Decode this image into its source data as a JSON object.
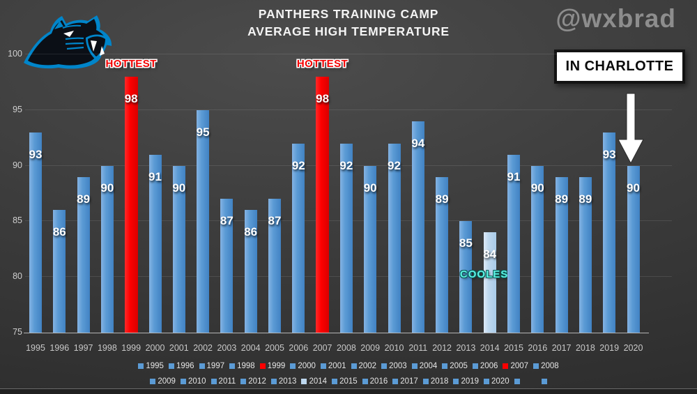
{
  "header": {
    "title_line1": "PANTHERS TRAINING CAMP",
    "title_line2": "AVERAGE HIGH TEMPERATURE",
    "watermark": "@wxbrad"
  },
  "annotations": {
    "hottest_label": "HOTTEST",
    "coolest_label": "COOLEST",
    "callout": "IN CHARLOTTE"
  },
  "icons": {
    "logo": "panthers-logo",
    "arrow": "down-arrow-icon"
  },
  "colors": {
    "bar_blue": "#5B9BD5",
    "bar_red": "#FE0000",
    "bar_pale": "#BDD7EE",
    "hottest_text": "#F40000",
    "coolest_text": "#5DF2E4",
    "logo_blue": "#0085CA",
    "background": "#3E3E3E",
    "title_text": "#F4F4F4",
    "watermark_text": "#8D8D8D"
  },
  "chart_data": {
    "type": "bar",
    "title": "Panthers Training Camp Average High Temperature",
    "subtitle": "In Charlotte",
    "xlabel": "",
    "ylabel": "",
    "ylim": [
      75,
      100
    ],
    "yticks": [
      75,
      80,
      85,
      90,
      95,
      100
    ],
    "grid": true,
    "legend_position": "bottom",
    "categories": [
      "1995",
      "1996",
      "1997",
      "1998",
      "1999",
      "2000",
      "2001",
      "2002",
      "2003",
      "2004",
      "2005",
      "2006",
      "2007",
      "2008",
      "2009",
      "2010",
      "2011",
      "2012",
      "2013",
      "2014",
      "2015",
      "2016",
      "2017",
      "2018",
      "2019",
      "2020"
    ],
    "values": [
      93,
      86,
      89,
      90,
      98,
      91,
      90,
      95,
      87,
      86,
      87,
      92,
      98,
      92,
      90,
      92,
      94,
      89,
      85,
      84,
      91,
      90,
      89,
      89,
      93,
      90
    ],
    "highlight_hottest": [
      "1999",
      "2007"
    ],
    "highlight_coolest": [
      "2014"
    ],
    "legend_rows": [
      [
        "1995",
        "1996",
        "1997",
        "1998",
        "1999",
        "2000",
        "2001",
        "2002",
        "2003",
        "2004",
        "2005",
        "2006",
        "2007",
        "2008"
      ],
      [
        "2009",
        "2010",
        "2011",
        "2012",
        "2013",
        "2014",
        "2015",
        "2016",
        "2017",
        "2018",
        "2019",
        "2020",
        "",
        ""
      ]
    ]
  }
}
